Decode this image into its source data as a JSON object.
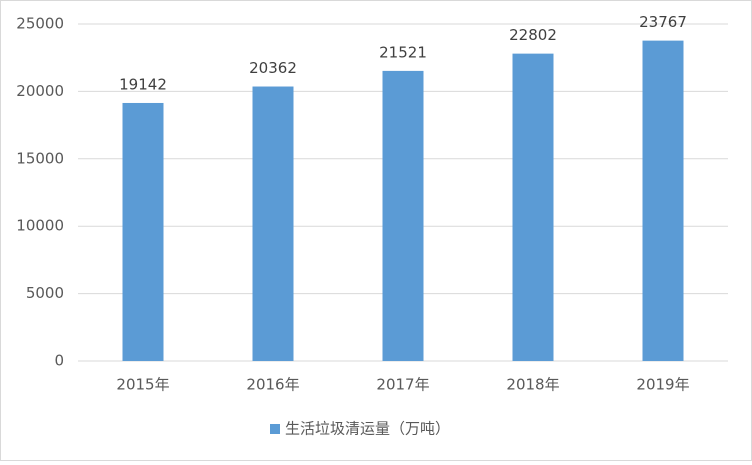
{
  "chart_data": {
    "type": "bar",
    "categories": [
      "2015年",
      "2016年",
      "2017年",
      "2018年",
      "2019年"
    ],
    "series": [
      {
        "name": "生活垃圾清运量（万吨）",
        "color": "#5b9bd5",
        "values": [
          19142,
          20362,
          21521,
          22802,
          23767
        ]
      }
    ],
    "ylim": [
      0,
      25000
    ],
    "yticks": [
      0,
      5000,
      10000,
      15000,
      20000,
      25000
    ],
    "grid": true,
    "legend": "bottom"
  }
}
